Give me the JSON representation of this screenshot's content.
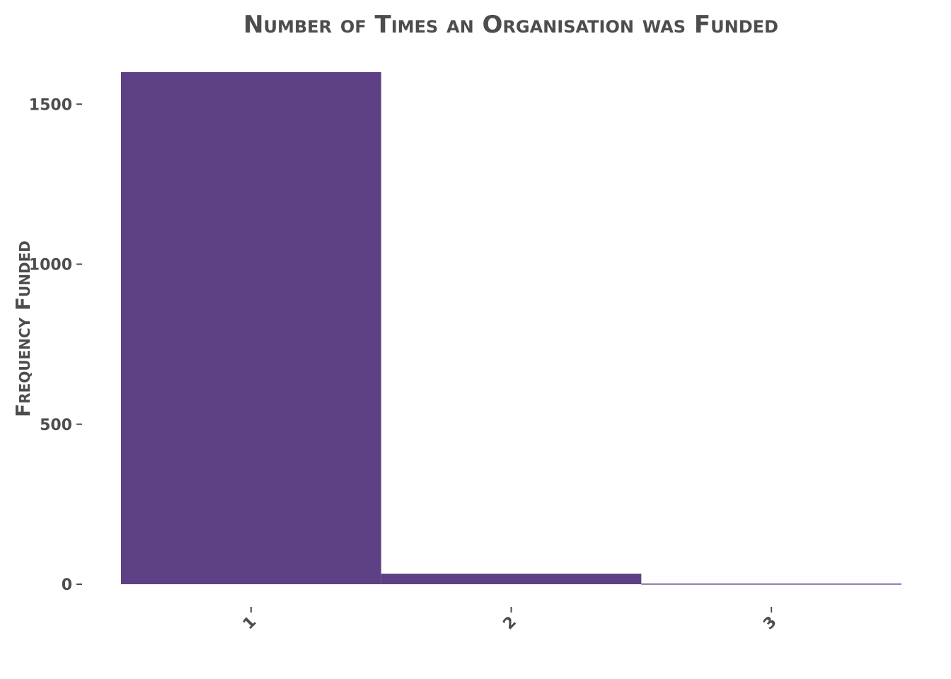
{
  "chart_data": {
    "type": "bar",
    "title": "Number of Times an Organisation was Funded",
    "xlabel": "",
    "ylabel": "Frequency Funded",
    "categories": [
      "1",
      "2",
      "3"
    ],
    "values": [
      1600,
      33,
      2
    ],
    "ylim": [
      0,
      1600
    ],
    "yticks": [
      0,
      500,
      1000,
      1500
    ],
    "grid": false,
    "legend": "none",
    "bar_color": "#5e4185",
    "text_color": "#4d4d4d"
  }
}
